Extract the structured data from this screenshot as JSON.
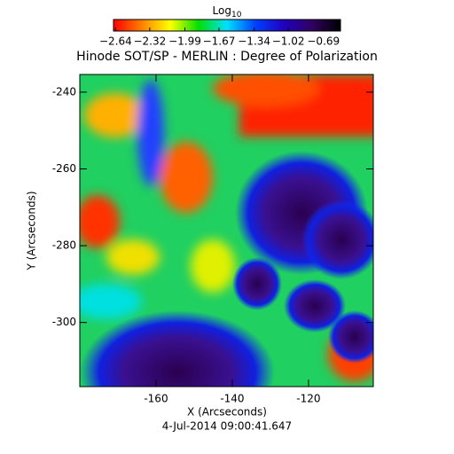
{
  "chart_data": {
    "type": "image",
    "title": "Hinode SOT/SP - MERLIN : Degree of Polarization",
    "x_label": "X (Arcseconds)",
    "y_label": "Y (Arcseconds)",
    "date": "4-Jul-2014 09:00:41.647",
    "xlim": [
      -180,
      -103
    ],
    "xticks": [
      -160,
      -140,
      -120
    ],
    "ylim": [
      -316.7,
      -235.4
    ],
    "yticks": [
      -300,
      -280,
      -260,
      -240
    ],
    "colorbar": {
      "label": "Log",
      "label_subscript": "10",
      "lim": [
        -2.66,
        -0.53
      ],
      "ticks": [
        {
          "value": -2.64,
          "label": "−2.64"
        },
        {
          "value": -2.32,
          "label": "−2.32"
        },
        {
          "value": -1.99,
          "label": "−1.99"
        },
        {
          "value": -1.67,
          "label": "−1.67"
        },
        {
          "value": -1.34,
          "label": "−1.34"
        },
        {
          "value": -1.02,
          "label": "−1.02"
        },
        {
          "value": -0.69,
          "label": "−0.69"
        }
      ],
      "colormap": [
        "#ff0000",
        "#ff8000",
        "#ffff00",
        "#00e000",
        "#00e0ff",
        "#0040ff",
        "#2000c0",
        "#300060",
        "#000000"
      ]
    }
  }
}
